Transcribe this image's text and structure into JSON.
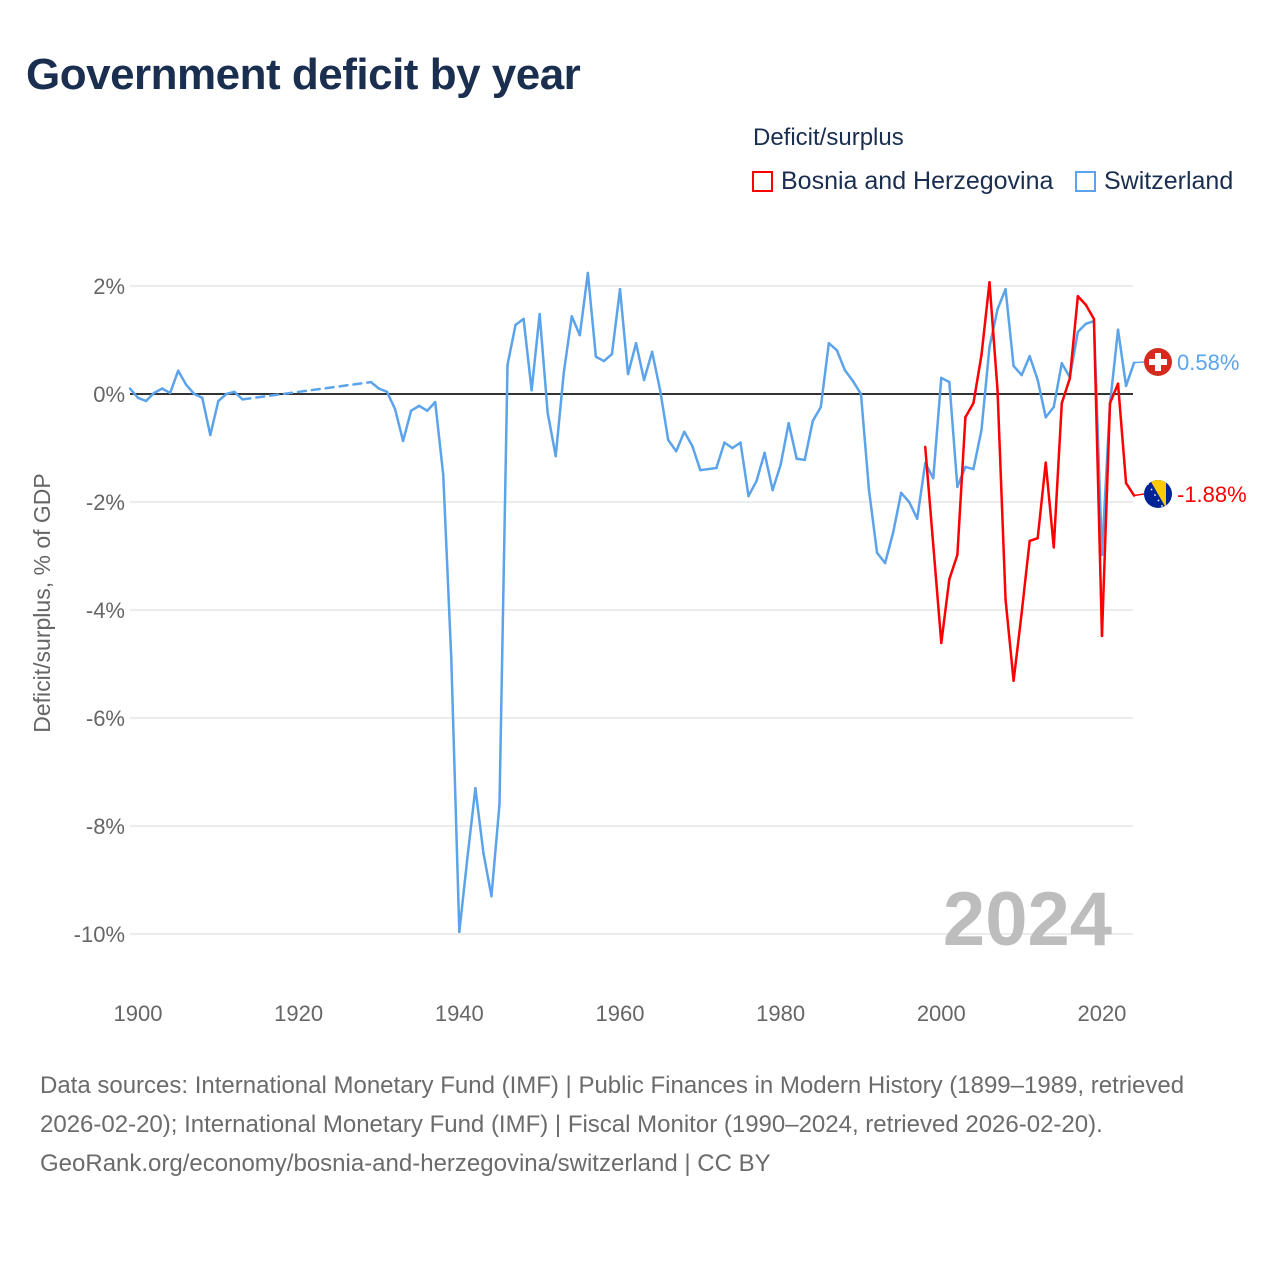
{
  "title": "Government deficit by year",
  "legend": {
    "title": "Deficit/surplus",
    "items": [
      {
        "name": "Bosnia and Herzegovina",
        "color": "#ff0000"
      },
      {
        "name": "Switzerland",
        "color": "#5ba3ea"
      }
    ]
  },
  "year_label": "2024",
  "footer": {
    "sources": "Data sources: International Monetary Fund (IMF) | Public Finances in Modern History (1899–1989, retrieved 2026-02-20); International Monetary Fund (IMF) | Fiscal Monitor (1990–2024, retrieved 2026-02-20).",
    "link": "GeoRank.org/economy/bosnia-and-herzegovina/switzerland | CC BY"
  },
  "chart_data": {
    "type": "line",
    "title": "Government deficit by year",
    "xlabel": "",
    "ylabel": "Deficit/surplus, % of GDP",
    "xlim": [
      1899,
      2024
    ],
    "ylim": [
      -11,
      2.5
    ],
    "x_ticks": [
      1900,
      1920,
      1940,
      1960,
      1980,
      2000,
      2020
    ],
    "x_tick_labels": [
      "1900",
      "1920",
      "1940",
      "1960",
      "1980",
      "2000",
      "2020"
    ],
    "y_ticks": [
      2,
      0,
      -2,
      -4,
      -6,
      -8,
      -10
    ],
    "y_tick_labels": [
      "2%",
      "0%",
      "-2%",
      "-4%",
      "-6%",
      "-8%",
      "-10%"
    ],
    "grid": true,
    "legend_position": "top-right",
    "series": [
      {
        "name": "Switzerland",
        "color": "#5ba3ea",
        "end_label": "0.58%",
        "flag": "switzerland-flag",
        "x": [
          1899,
          1900,
          1901,
          1902,
          1903,
          1904,
          1905,
          1906,
          1907,
          1908,
          1909,
          1910,
          1911,
          1912,
          1913,
          1929,
          1930,
          1931,
          1932,
          1933,
          1934,
          1935,
          1936,
          1937,
          1938,
          1939,
          1940,
          1941,
          1942,
          1943,
          1944,
          1945,
          1946,
          1947,
          1948,
          1949,
          1950,
          1951,
          1952,
          1953,
          1954,
          1955,
          1956,
          1957,
          1958,
          1959,
          1960,
          1961,
          1962,
          1963,
          1964,
          1965,
          1966,
          1967,
          1968,
          1969,
          1970,
          1971,
          1972,
          1973,
          1974,
          1975,
          1976,
          1977,
          1978,
          1979,
          1980,
          1981,
          1982,
          1983,
          1984,
          1985,
          1986,
          1987,
          1988,
          1989,
          1990,
          1991,
          1992,
          1993,
          1994,
          1995,
          1996,
          1997,
          1998,
          1999,
          2000,
          2001,
          2002,
          2003,
          2004,
          2005,
          2006,
          2007,
          2008,
          2009,
          2010,
          2011,
          2012,
          2013,
          2014,
          2015,
          2016,
          2017,
          2018,
          2019,
          2020,
          2021,
          2022,
          2023,
          2024
        ],
        "values": [
          0.1,
          -0.07,
          -0.13,
          0.02,
          0.1,
          0.02,
          0.43,
          0.17,
          0.0,
          -0.07,
          -0.76,
          -0.13,
          0.0,
          0.04,
          -0.1,
          0.22,
          0.1,
          0.04,
          -0.28,
          -0.87,
          -0.31,
          -0.22,
          -0.31,
          -0.15,
          -1.5,
          -4.9,
          -9.96,
          -8.6,
          -7.3,
          -8.5,
          -9.3,
          -7.6,
          0.54,
          1.28,
          1.39,
          0.07,
          1.48,
          -0.35,
          -1.15,
          0.39,
          1.44,
          1.09,
          2.24,
          0.69,
          0.61,
          0.74,
          1.94,
          0.37,
          0.94,
          0.26,
          0.78,
          0.07,
          -0.85,
          -1.06,
          -0.7,
          -0.96,
          -1.41,
          -1.39,
          -1.37,
          -0.9,
          -1.0,
          -0.9,
          -1.89,
          -1.61,
          -1.09,
          -1.78,
          -1.31,
          -0.54,
          -1.2,
          -1.22,
          -0.5,
          -0.24,
          0.94,
          0.81,
          0.44,
          0.24,
          0.0,
          -1.78,
          -2.94,
          -3.13,
          -2.57,
          -1.83,
          -2.0,
          -2.31,
          -1.28,
          -1.56,
          0.3,
          0.22,
          -1.72,
          -1.35,
          -1.39,
          -0.67,
          0.87,
          1.57,
          1.94,
          0.52,
          0.35,
          0.7,
          0.26,
          -0.43,
          -0.24,
          0.57,
          0.31,
          1.15,
          1.3,
          1.35,
          -2.98,
          -0.19,
          1.19,
          0.15,
          0.58
        ]
      },
      {
        "name": "Bosnia and Herzegovina",
        "color": "#ff0000",
        "end_label": "-1.88%",
        "flag": "bosnia-flag",
        "x": [
          1998,
          1999,
          2000,
          2001,
          2002,
          2003,
          2004,
          2005,
          2006,
          2007,
          2008,
          2009,
          2010,
          2011,
          2012,
          2013,
          2014,
          2015,
          2016,
          2017,
          2018,
          2019,
          2020,
          2021,
          2022,
          2023,
          2024
        ],
        "values": [
          -0.98,
          -2.8,
          -4.61,
          -3.43,
          -2.98,
          -0.43,
          -0.17,
          0.72,
          2.07,
          0.07,
          -3.81,
          -5.31,
          -4.06,
          -2.72,
          -2.67,
          -1.27,
          -2.84,
          -0.17,
          0.29,
          1.81,
          1.65,
          1.39,
          -4.48,
          -0.17,
          0.19,
          -1.65,
          -1.88
        ]
      }
    ]
  }
}
